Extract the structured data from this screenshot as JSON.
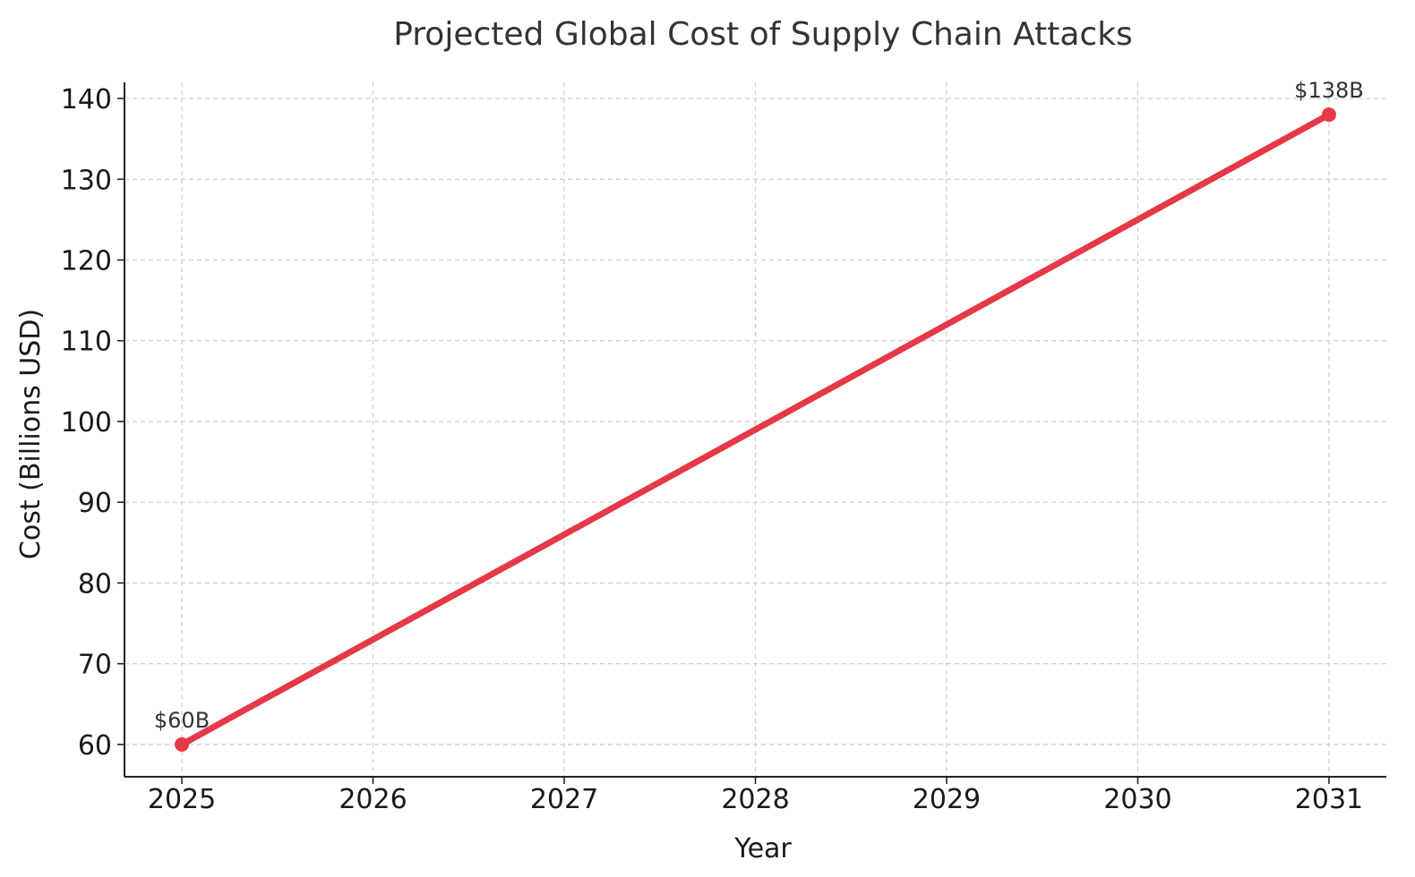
{
  "chart_data": {
    "type": "line",
    "title": "Projected Global Cost of Supply Chain Attacks",
    "xlabel": "Year",
    "ylabel": "Cost (Billions USD)",
    "xlim": [
      2024.7,
      2031.3
    ],
    "ylim": [
      56,
      142
    ],
    "x_ticks": [
      "2025",
      "2026",
      "2027",
      "2028",
      "2029",
      "2030",
      "2031"
    ],
    "y_ticks": [
      60,
      70,
      80,
      90,
      100,
      110,
      120,
      130,
      140
    ],
    "grid": true,
    "legend": "none",
    "series": [
      {
        "color": "#e63946",
        "points": [
          {
            "x": 2025,
            "y": 60
          },
          {
            "x": 2031,
            "y": 138
          }
        ],
        "markers": "endpoints"
      }
    ],
    "annotations": [
      {
        "x": 2025,
        "y": 60,
        "text": "$60B"
      },
      {
        "x": 2031,
        "y": 138,
        "text": "$138B"
      }
    ]
  }
}
